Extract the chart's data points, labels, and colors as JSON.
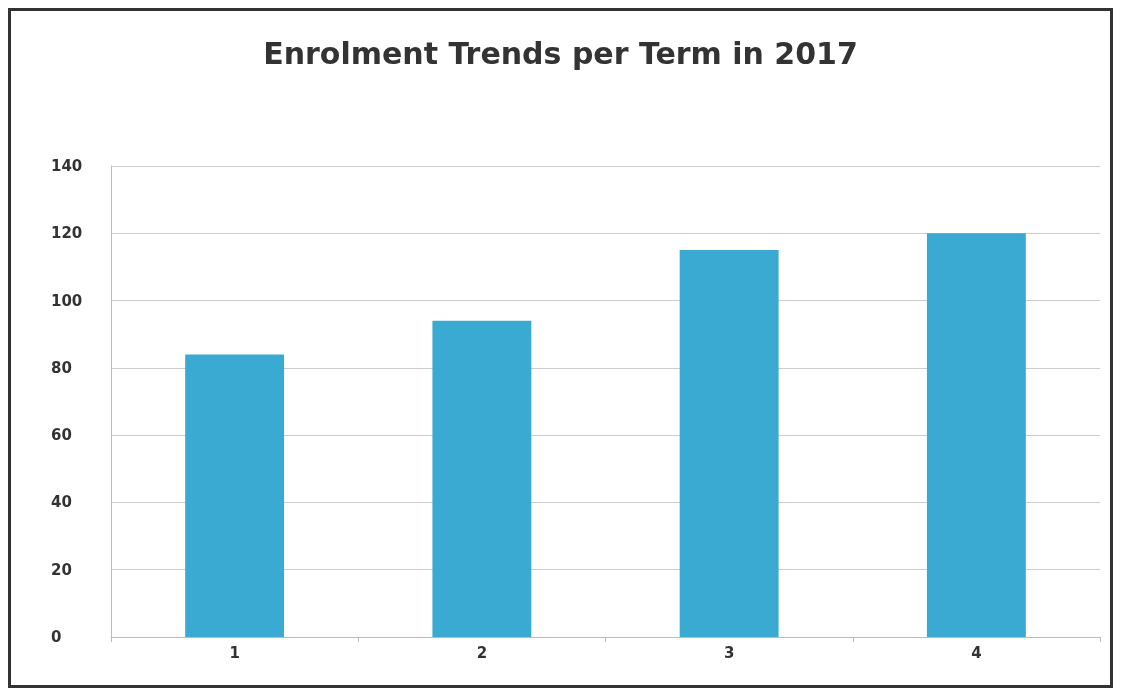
{
  "chart_data": {
    "type": "bar",
    "title": "Enrolment Trends per Term in 2017",
    "categories": [
      "1",
      "2",
      "3",
      "4"
    ],
    "values": [
      84,
      94,
      115,
      120
    ],
    "color": "#3aaad2",
    "ylim": [
      0,
      140
    ],
    "yticks": [
      0,
      20,
      40,
      60,
      80,
      100,
      120,
      140
    ],
    "grid": "y"
  }
}
